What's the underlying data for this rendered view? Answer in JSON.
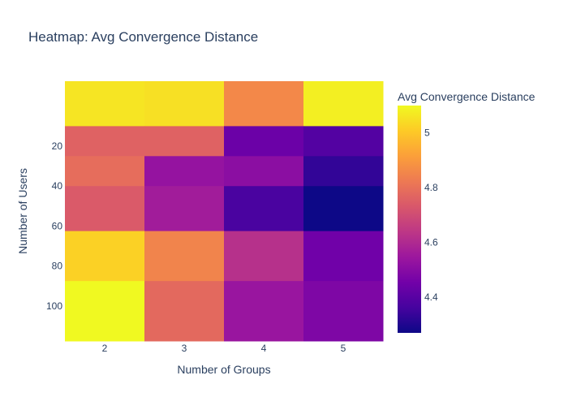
{
  "chart_data": {
    "type": "heatmap",
    "title": "Heatmap: Avg Convergence Distance",
    "xlabel": "Number of Groups",
    "ylabel": "Number of Users",
    "x": [
      2,
      3,
      4,
      5
    ],
    "y": [
      0,
      20,
      30,
      50,
      75,
      100
    ],
    "z": [
      [
        5.06,
        5.05,
        4.86,
        5.08
      ],
      [
        4.76,
        4.76,
        4.44,
        4.39
      ],
      [
        4.79,
        4.53,
        4.51,
        4.33
      ],
      [
        4.74,
        4.56,
        4.37,
        4.27
      ],
      [
        5.02,
        4.85,
        4.62,
        4.45
      ],
      [
        5.1,
        4.78,
        4.54,
        4.48
      ]
    ],
    "x_ticks": [
      "2",
      "3",
      "4",
      "5"
    ],
    "y_ticks": [
      "20",
      "40",
      "60",
      "80",
      "100"
    ],
    "y_tick_values": [
      20,
      40,
      60,
      80,
      100
    ],
    "yrange": [
      117.5,
      -12.5
    ],
    "zrange": [
      4.27,
      5.1
    ],
    "colorscale": "plasma",
    "colorbar": {
      "title": "Avg Convergence Distance",
      "ticks": [
        "4.4",
        "4.6",
        "4.8",
        "5"
      ],
      "tick_values": [
        4.4,
        4.6,
        4.8,
        5.0
      ]
    },
    "grid": false
  }
}
